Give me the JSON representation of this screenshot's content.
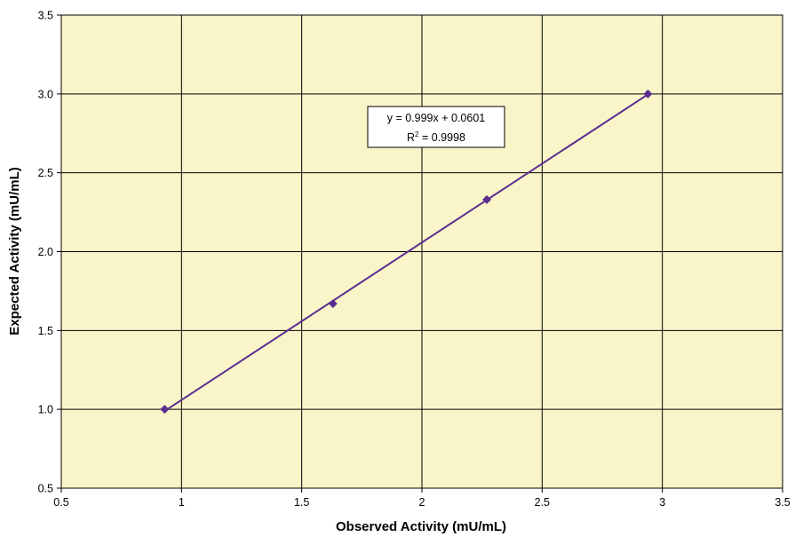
{
  "chart_data": {
    "type": "scatter",
    "title": "",
    "xlabel": "Observed Activity (mU/mL)",
    "ylabel": "Expected Activity (mU/mL)",
    "xlim": [
      0.5,
      3.5
    ],
    "ylim": [
      0.5,
      3.5
    ],
    "x_ticks": [
      0.5,
      1,
      1.5,
      2,
      2.5,
      3,
      3.5
    ],
    "x_tick_labels": [
      "0.5",
      "1",
      "1.5",
      "2",
      "2.5",
      "3",
      "3.5"
    ],
    "y_ticks": [
      0.5,
      1.0,
      1.5,
      2.0,
      2.5,
      3.0,
      3.5
    ],
    "y_tick_labels": [
      "0.5",
      "1.0",
      "1.5",
      "2.0",
      "2.5",
      "3.0",
      "3.5"
    ],
    "grid": true,
    "series": [
      {
        "x": [
          0.93,
          1.63,
          2.27,
          2.94
        ],
        "y": [
          1.0,
          1.67,
          2.33,
          3.0
        ],
        "marker": "diamond",
        "color": "#5b2d91"
      }
    ],
    "trendline": {
      "slope": 0.999,
      "intercept": 0.0601,
      "equation": "y = 0.999x + 0.0601",
      "r2_prefix": "R",
      "r2_sup": "2",
      "r2_suffix": " = 0.9998",
      "color": "#5b2d91"
    },
    "plot_background": "#faf5c8",
    "grid_color": "#000000"
  }
}
